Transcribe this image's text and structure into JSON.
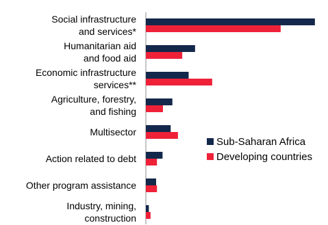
{
  "chart_data": {
    "type": "bar",
    "orientation": "horizontal",
    "title": "",
    "xlabel": "",
    "ylabel": "",
    "categories": [
      [
        "Social infrastructure",
        "and services*"
      ],
      [
        "Humanitarian aid",
        "and food aid"
      ],
      [
        "Economic infrastructure",
        "services**"
      ],
      [
        "Agriculture, forestry,",
        "and fishing"
      ],
      [
        "Multisector"
      ],
      [
        "Action related to debt"
      ],
      [
        "Other program assistance"
      ],
      [
        "Industry, mining,",
        "construction"
      ]
    ],
    "series": [
      {
        "name": "Sub-Saharan Africa",
        "color": "#13284b",
        "values": [
          39.5,
          11.5,
          10.0,
          6.2,
          5.8,
          3.9,
          2.4,
          0.7
        ]
      },
      {
        "name": "Developing countries",
        "color": "#ee2139",
        "values": [
          31.5,
          8.5,
          15.5,
          4.0,
          7.5,
          2.6,
          2.6,
          1.1
        ]
      }
    ],
    "xlim": [
      0,
      40
    ],
    "grid": false,
    "legend_position": "right"
  }
}
